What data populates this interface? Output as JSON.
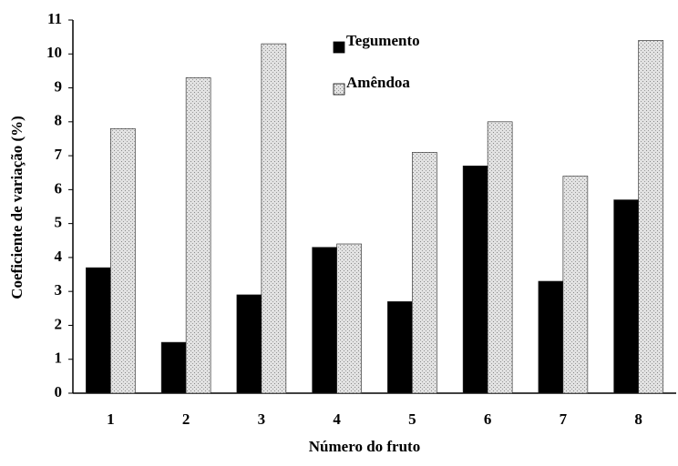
{
  "chart_data": {
    "type": "bar",
    "x_label": "Número do fruto",
    "y_label": "Coeficiente de variação (%)",
    "categories": [
      "1",
      "2",
      "3",
      "4",
      "5",
      "6",
      "7",
      "8"
    ],
    "series": [
      {
        "name": "Tegumento",
        "color": "#000000",
        "values": [
          3.7,
          1.5,
          2.9,
          4.3,
          2.7,
          6.7,
          3.3,
          5.7
        ]
      },
      {
        "name": "Amêndoa",
        "color": "#d4d4d4",
        "values": [
          7.8,
          9.3,
          10.3,
          4.4,
          7.1,
          8.0,
          6.4,
          10.4
        ]
      }
    ],
    "ylim": [
      0,
      11
    ],
    "yticks": [
      0,
      1,
      2,
      3,
      4,
      5,
      6,
      7,
      8,
      9,
      10,
      11
    ],
    "legend": "top"
  }
}
